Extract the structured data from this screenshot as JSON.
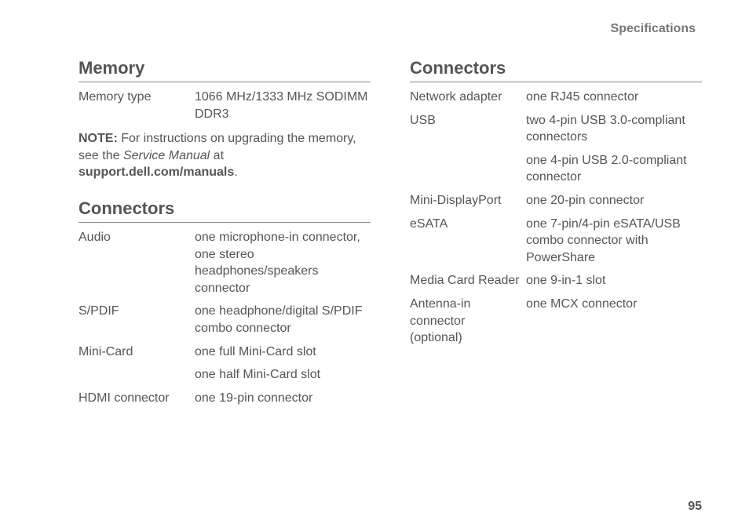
{
  "header": "Specifications",
  "page_number": "95",
  "colors": {
    "text": "#555555",
    "header_text": "#777777",
    "rule": "#888888",
    "background": "#ffffff"
  },
  "typography": {
    "body_fontsize_pt": 12,
    "heading_fontsize_pt": 16,
    "header_fontsize_pt": 12,
    "font_family": "Segoe UI / Helvetica Neue"
  },
  "left": {
    "memory": {
      "title": "Memory",
      "rows": [
        {
          "label": "Memory type",
          "value": "1066 MHz/1333 MHz SODIMM DDR3"
        }
      ],
      "note": {
        "prefix": "NOTE:",
        "body_before": " For instructions on upgrading the memory, see the ",
        "italic": "Service Manual",
        "body_after": " at ",
        "bold_link": "support.dell.com/manuals",
        "suffix": "."
      }
    },
    "connectors": {
      "title": "Connectors",
      "rows": [
        {
          "label": "Audio",
          "value": "one microphone-in connector, one stereo headphones/speakers connector"
        },
        {
          "label": "S/PDIF",
          "value": "one headphone/digital S/PDIF combo connector"
        },
        {
          "label": "Mini-Card",
          "value": "one full Mini-Card slot",
          "value2": "one half Mini-Card slot"
        },
        {
          "label": "HDMI connector",
          "value": "one 19-pin connector"
        }
      ]
    }
  },
  "right": {
    "connectors": {
      "title": "Connectors",
      "rows": [
        {
          "label": "Network adapter",
          "value": "one RJ45 connector"
        },
        {
          "label": "USB",
          "value": "two 4-pin USB 3.0-compliant connectors",
          "value2": "one 4-pin USB 2.0-compliant connector"
        },
        {
          "label": "Mini-DisplayPort",
          "value": "one 20-pin connector"
        },
        {
          "label": "eSATA",
          "value": "one 7-pin/4-pin eSATA/USB combo connector with PowerShare"
        },
        {
          "label": "Media Card Reader",
          "value": "one 9-in-1 slot"
        },
        {
          "label": "Antenna-in connector (optional)",
          "value": "one MCX connector"
        }
      ]
    }
  }
}
